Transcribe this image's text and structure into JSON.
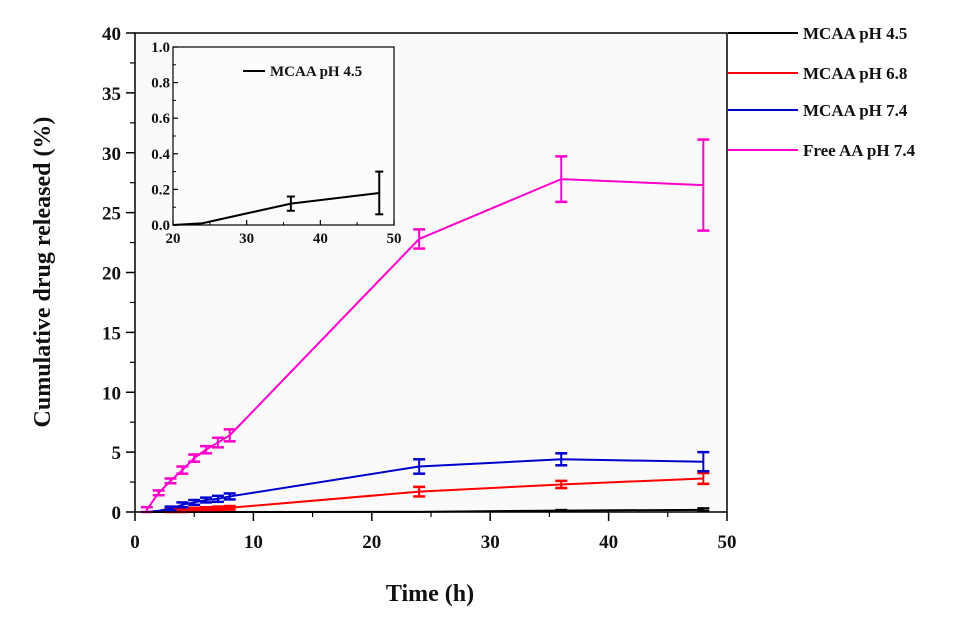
{
  "chart_data": {
    "type": "line",
    "title": "",
    "xlabel": "Time (h)",
    "ylabel": "Cumulative drug released (%)",
    "xlim": [
      0,
      50
    ],
    "ylim": [
      0,
      40
    ],
    "xticks": [
      0,
      10,
      20,
      30,
      40,
      50
    ],
    "yticks": [
      0,
      5,
      10,
      15,
      20,
      25,
      30,
      35,
      40
    ],
    "grid": false,
    "legend_position": "right-outside-top",
    "series": [
      {
        "name": "MCAA pH 4.5",
        "color": "#000000",
        "x": [
          1,
          2,
          3,
          4,
          5,
          6,
          7,
          8,
          24,
          36,
          48
        ],
        "y": [
          0,
          0,
          0,
          0,
          0,
          0,
          0,
          0,
          0.01,
          0.12,
          0.18
        ],
        "err": [
          0,
          0,
          0,
          0,
          0,
          0,
          0,
          0,
          0,
          0.04,
          0.12
        ]
      },
      {
        "name": "MCAA pH 6.8",
        "color": "#ff0000",
        "x": [
          1,
          2,
          3,
          4,
          5,
          6,
          7,
          8,
          24,
          36,
          48
        ],
        "y": [
          0,
          0.05,
          0.1,
          0.15,
          0.2,
          0.25,
          0.3,
          0.35,
          1.7,
          2.3,
          2.8
        ],
        "err": [
          0,
          0,
          0.15,
          0.15,
          0.15,
          0.15,
          0.15,
          0.15,
          0.4,
          0.3,
          0.45
        ]
      },
      {
        "name": "MCAA pH 7.4",
        "color": "#0000cc",
        "x": [
          1,
          2,
          3,
          4,
          5,
          6,
          7,
          8,
          24,
          36,
          48
        ],
        "y": [
          0,
          0.1,
          0.3,
          0.6,
          0.8,
          1.0,
          1.1,
          1.3,
          3.8,
          4.4,
          4.2
        ],
        "err": [
          0,
          0,
          0.15,
          0.2,
          0.2,
          0.2,
          0.25,
          0.25,
          0.6,
          0.5,
          0.8
        ]
      },
      {
        "name": "Free AA pH 7.4",
        "color": "#ff00cc",
        "x": [
          1,
          2,
          3,
          4,
          5,
          6,
          7,
          8,
          24,
          36,
          48
        ],
        "y": [
          0.2,
          1.6,
          2.6,
          3.5,
          4.5,
          5.2,
          5.8,
          6.4,
          22.8,
          27.8,
          27.3
        ],
        "err": [
          0.2,
          0.2,
          0.2,
          0.3,
          0.3,
          0.3,
          0.4,
          0.5,
          0.8,
          1.9,
          3.8
        ]
      }
    ],
    "inset": {
      "xlim": [
        20,
        50
      ],
      "ylim": [
        0,
        1.0
      ],
      "xticks": [
        20,
        30,
        40,
        50
      ],
      "yticks": [
        "0.0",
        "0.2",
        "0.4",
        "0.6",
        "0.8",
        "1.0"
      ],
      "legend": "MCAA pH 4.5",
      "series": {
        "name": "MCAA pH 4.5",
        "color": "#000000",
        "x": [
          20,
          24,
          36,
          48
        ],
        "y": [
          0.0,
          0.01,
          0.12,
          0.18
        ],
        "err": [
          0,
          0,
          0.04,
          0.12
        ]
      }
    }
  }
}
